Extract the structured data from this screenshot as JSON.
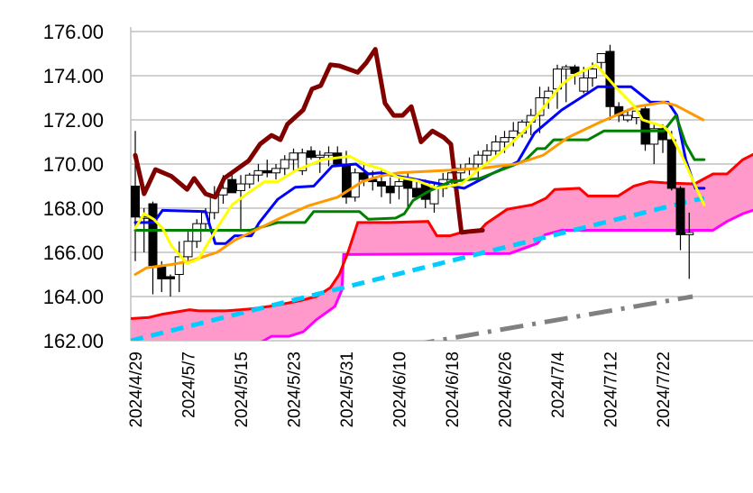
{
  "chart_data": {
    "type": "candlestick-ichimoku",
    "title": "",
    "ylim": [
      162,
      176
    ],
    "y_ticks": [
      "162.00",
      "164.00",
      "166.00",
      "168.00",
      "170.00",
      "172.00",
      "174.00",
      "176.00"
    ],
    "x_tick_labels": [
      "2024/4/29",
      "2024/5/7",
      "2024/5/15",
      "2024/5/23",
      "2024/5/31",
      "2024/6/10",
      "2024/6/18",
      "2024/6/26",
      "2024/7/4",
      "2024/7/12",
      "2024/7/22"
    ],
    "x_tick_every": 6,
    "grid": "horizontal",
    "candles_ohlc": [
      [
        169.0,
        171.5,
        165.6,
        167.6
      ],
      [
        167.6,
        168.0,
        166.0,
        167.6
      ],
      [
        168.2,
        168.3,
        164.1,
        165.4
      ],
      [
        165.4,
        165.6,
        164.2,
        164.8
      ],
      [
        164.9,
        165.0,
        164.0,
        164.8
      ],
      [
        165.0,
        166.5,
        164.2,
        165.8
      ],
      [
        165.8,
        167.0,
        165.6,
        166.5
      ],
      [
        166.5,
        167.5,
        166.2,
        167.3
      ],
      [
        167.3,
        168.0,
        167.0,
        167.8
      ],
      [
        167.8,
        169.0,
        167.5,
        168.6
      ],
      [
        168.6,
        169.5,
        168.2,
        168.9
      ],
      [
        169.3,
        169.5,
        168.7,
        168.7
      ],
      [
        168.8,
        169.5,
        167.0,
        169.1
      ],
      [
        169.1,
        169.6,
        168.9,
        169.5
      ],
      [
        169.5,
        170.0,
        169.2,
        169.7
      ],
      [
        169.7,
        170.2,
        169.4,
        169.6
      ],
      [
        169.6,
        170.0,
        169.3,
        169.8
      ],
      [
        169.8,
        170.4,
        169.5,
        170.2
      ],
      [
        170.2,
        170.7,
        169.6,
        170.5
      ],
      [
        169.7,
        170.7,
        169.5,
        170.5
      ],
      [
        170.6,
        170.8,
        170.2,
        170.3
      ],
      [
        170.3,
        170.6,
        169.6,
        170.4
      ],
      [
        170.4,
        170.8,
        169.9,
        170.5
      ],
      [
        170.5,
        170.8,
        170.0,
        170.0
      ],
      [
        170.0,
        170.6,
        168.2,
        168.5
      ],
      [
        168.5,
        169.8,
        168.3,
        169.6
      ],
      [
        169.6,
        170.0,
        169.0,
        169.3
      ],
      [
        169.3,
        169.7,
        168.8,
        169.2
      ],
      [
        169.2,
        169.8,
        168.5,
        169.0
      ],
      [
        169.0,
        169.4,
        168.2,
        168.7
      ],
      [
        169.0,
        169.4,
        168.4,
        169.2
      ],
      [
        169.3,
        169.6,
        168.0,
        168.9
      ],
      [
        168.9,
        169.3,
        168.4,
        168.5
      ],
      [
        169.1,
        169.3,
        168.0,
        168.4
      ],
      [
        168.2,
        169.2,
        167.8,
        168.9
      ],
      [
        168.9,
        169.6,
        168.5,
        169.3
      ],
      [
        169.3,
        169.8,
        169.0,
        169.6
      ],
      [
        169.6,
        170.0,
        169.3,
        169.8
      ],
      [
        169.8,
        170.3,
        169.5,
        170.0
      ],
      [
        170.0,
        170.6,
        169.4,
        170.4
      ],
      [
        170.4,
        170.9,
        170.0,
        170.6
      ],
      [
        170.6,
        171.3,
        170.3,
        171.0
      ],
      [
        171.0,
        171.5,
        170.5,
        171.2
      ],
      [
        171.2,
        171.9,
        170.8,
        171.5
      ],
      [
        171.4,
        172.0,
        171.2,
        171.9
      ],
      [
        171.9,
        172.5,
        171.3,
        172.2
      ],
      [
        172.2,
        173.5,
        171.4,
        173.0
      ],
      [
        173.0,
        173.5,
        172.5,
        173.3
      ],
      [
        173.4,
        174.5,
        172.5,
        174.3
      ],
      [
        174.3,
        174.5,
        172.8,
        174.4
      ],
      [
        174.4,
        174.5,
        173.6,
        174.1
      ],
      [
        173.3,
        174.4,
        173.2,
        173.9
      ],
      [
        173.9,
        174.6,
        173.5,
        174.3
      ],
      [
        174.6,
        175.0,
        174.2,
        175.0
      ],
      [
        175.1,
        175.4,
        172.0,
        172.6
      ],
      [
        172.6,
        172.8,
        171.9,
        172.2
      ],
      [
        172.0,
        172.5,
        171.9,
        172.2
      ],
      [
        172.1,
        172.5,
        171.8,
        172.4
      ],
      [
        172.5,
        172.6,
        170.6,
        170.9
      ],
      [
        170.9,
        171.8,
        170.0,
        171.6
      ],
      [
        171.6,
        171.8,
        170.5,
        171.1
      ],
      [
        171.1,
        171.5,
        168.8,
        168.9
      ],
      [
        168.9,
        169.0,
        166.1,
        166.8
      ],
      [
        166.8,
        167.8,
        164.8,
        166.9
      ]
    ],
    "series": [
      {
        "name": "chikou",
        "color": "#800000",
        "width": 5,
        "points": [
          [
            0,
            170.4
          ],
          [
            1.0,
            168.65
          ],
          [
            2.3,
            169.75
          ],
          [
            4.1,
            169.45
          ],
          [
            5.9,
            168.85
          ],
          [
            6.7,
            169.35
          ],
          [
            8.0,
            168.65
          ],
          [
            9.1,
            168.5
          ],
          [
            10.1,
            169.35
          ],
          [
            11.5,
            169.75
          ],
          [
            12.9,
            170.15
          ],
          [
            14.2,
            170.9
          ],
          [
            15.5,
            171.3
          ],
          [
            16.5,
            171.1
          ],
          [
            17.3,
            171.8
          ],
          [
            19.1,
            172.45
          ],
          [
            20.1,
            173.4
          ],
          [
            21.1,
            173.55
          ],
          [
            22.2,
            174.5
          ],
          [
            23.2,
            174.45
          ],
          [
            25.3,
            174.15
          ],
          [
            26.3,
            174.6
          ],
          [
            27.3,
            175.2
          ],
          [
            28.4,
            172.75
          ],
          [
            29.4,
            172.2
          ],
          [
            30.4,
            172.2
          ],
          [
            31.4,
            172.6
          ],
          [
            32.5,
            171.0
          ],
          [
            33.8,
            171.5
          ],
          [
            35.1,
            171.2
          ],
          [
            35.9,
            170.9
          ],
          [
            37.1,
            166.9
          ],
          [
            38.1,
            166.95
          ],
          [
            39.5,
            167.0
          ]
        ]
      },
      {
        "name": "blue",
        "color": "#0000ff",
        "width": 3,
        "points": [
          [
            0,
            167.35
          ],
          [
            2.1,
            167.35
          ],
          [
            3.1,
            167.9
          ],
          [
            8.0,
            167.85
          ],
          [
            9.1,
            166.4
          ],
          [
            10.3,
            166.4
          ],
          [
            11.3,
            166.75
          ],
          [
            13.2,
            166.75
          ],
          [
            14.1,
            167.35
          ],
          [
            16.2,
            168.4
          ],
          [
            18.2,
            168.95
          ],
          [
            20.3,
            169.0
          ],
          [
            22.4,
            169.9
          ],
          [
            25.1,
            170.0
          ],
          [
            26.5,
            169.55
          ],
          [
            27.8,
            169.6
          ],
          [
            34.7,
            169.1
          ],
          [
            37.4,
            168.9
          ],
          [
            40.5,
            169.55
          ],
          [
            43.5,
            170.1
          ],
          [
            45.4,
            171.4
          ],
          [
            48.5,
            172.45
          ],
          [
            52.6,
            173.5
          ],
          [
            56.4,
            173.5
          ],
          [
            58.6,
            172.8
          ],
          [
            60.6,
            172.8
          ],
          [
            61.6,
            172.2
          ],
          [
            62.6,
            170.2
          ],
          [
            63.7,
            168.9
          ],
          [
            64.7,
            168.9
          ]
        ]
      },
      {
        "name": "green",
        "color": "#008000",
        "width": 3,
        "points": [
          [
            0,
            167.0
          ],
          [
            13.1,
            167.0
          ],
          [
            16.2,
            167.35
          ],
          [
            19.3,
            167.35
          ],
          [
            20.3,
            167.85
          ],
          [
            25.5,
            167.85
          ],
          [
            26.5,
            167.5
          ],
          [
            29.6,
            167.55
          ],
          [
            30.6,
            167.75
          ],
          [
            31.6,
            168.35
          ],
          [
            33.3,
            168.75
          ],
          [
            35.8,
            169.2
          ],
          [
            39.2,
            169.35
          ],
          [
            44.3,
            170.15
          ],
          [
            45.7,
            170.7
          ],
          [
            46.6,
            170.7
          ],
          [
            47.6,
            171.1
          ],
          [
            51.5,
            171.1
          ],
          [
            53.3,
            171.5
          ],
          [
            60.1,
            171.5
          ],
          [
            61.5,
            172.2
          ],
          [
            62.6,
            170.9
          ],
          [
            63.6,
            170.2
          ],
          [
            64.7,
            170.2
          ]
        ]
      },
      {
        "name": "orange",
        "color": "#ff9900",
        "width": 3,
        "points": [
          [
            0,
            165.0
          ],
          [
            1.3,
            165.3
          ],
          [
            4.1,
            165.45
          ],
          [
            6.2,
            165.6
          ],
          [
            9.3,
            166.0
          ],
          [
            11.3,
            166.55
          ],
          [
            13.4,
            166.95
          ],
          [
            16.2,
            167.5
          ],
          [
            19.6,
            168.1
          ],
          [
            23.0,
            168.5
          ],
          [
            25.8,
            169.2
          ],
          [
            27.8,
            169.45
          ],
          [
            29.9,
            169.6
          ],
          [
            34.7,
            169.7
          ],
          [
            39.2,
            169.8
          ],
          [
            43.3,
            170.0
          ],
          [
            46.4,
            170.4
          ],
          [
            49.2,
            171.2
          ],
          [
            52.9,
            171.9
          ],
          [
            57.0,
            172.6
          ],
          [
            60.1,
            172.8
          ],
          [
            61.5,
            172.65
          ],
          [
            64.6,
            172.0
          ]
        ]
      },
      {
        "name": "yellow",
        "color": "#ffff00",
        "width": 3,
        "points": [
          [
            0,
            167.1
          ],
          [
            1.0,
            167.75
          ],
          [
            2.1,
            167.5
          ],
          [
            3.1,
            167.1
          ],
          [
            4.1,
            166.3
          ],
          [
            5.9,
            165.5
          ],
          [
            7.2,
            165.7
          ],
          [
            9.3,
            167.1
          ],
          [
            11.0,
            168.15
          ],
          [
            12.7,
            168.65
          ],
          [
            14.7,
            169.2
          ],
          [
            16.2,
            169.2
          ],
          [
            18.2,
            169.7
          ],
          [
            21.3,
            170.2
          ],
          [
            24.4,
            170.35
          ],
          [
            26.1,
            170.0
          ],
          [
            27.8,
            169.8
          ],
          [
            29.9,
            169.4
          ],
          [
            32.0,
            169.25
          ],
          [
            34.3,
            168.9
          ],
          [
            37.1,
            169.1
          ],
          [
            39.2,
            169.8
          ],
          [
            41.5,
            170.5
          ],
          [
            44.0,
            171.4
          ],
          [
            46.1,
            172.4
          ],
          [
            48.5,
            173.6
          ],
          [
            49.8,
            174.0
          ],
          [
            52.4,
            174.5
          ],
          [
            54.6,
            173.5
          ],
          [
            56.7,
            172.65
          ],
          [
            57.7,
            172.0
          ],
          [
            60.1,
            171.7
          ],
          [
            60.8,
            171.4
          ],
          [
            62.2,
            170.35
          ],
          [
            63.6,
            169.1
          ],
          [
            64.7,
            168.15
          ]
        ]
      }
    ],
    "cloud": {
      "fill": "#ff99cc",
      "senkou_a": {
        "color": "#ff0000",
        "points": [
          [
            -0.5,
            163.0
          ],
          [
            1.5,
            163.05
          ],
          [
            3.1,
            163.2
          ],
          [
            6.2,
            163.4
          ],
          [
            7.2,
            163.35
          ],
          [
            10.3,
            163.35
          ],
          [
            11.9,
            163.4
          ],
          [
            13.4,
            163.45
          ],
          [
            16.0,
            163.6
          ],
          [
            18.6,
            163.8
          ],
          [
            20.6,
            164.0
          ],
          [
            22.2,
            164.4
          ],
          [
            23.2,
            165.0
          ],
          [
            24.2,
            166.0
          ],
          [
            25.3,
            167.35
          ],
          [
            28.9,
            167.35
          ],
          [
            33.3,
            167.4
          ],
          [
            34.3,
            166.75
          ],
          [
            35.8,
            166.75
          ],
          [
            37.1,
            166.9
          ],
          [
            39.2,
            167.0
          ],
          [
            39.9,
            167.3
          ],
          [
            42.3,
            167.95
          ],
          [
            45.1,
            168.15
          ],
          [
            46.7,
            168.45
          ],
          [
            47.7,
            168.85
          ],
          [
            50.5,
            168.9
          ],
          [
            51.5,
            168.55
          ],
          [
            54.9,
            168.55
          ],
          [
            56.7,
            169.0
          ],
          [
            58.5,
            169.2
          ],
          [
            60.1,
            169.15
          ],
          [
            63.6,
            169.1
          ],
          [
            65.7,
            169.55
          ],
          [
            67.3,
            169.55
          ],
          [
            69.1,
            170.2
          ],
          [
            70.6,
            170.5
          ]
        ]
      },
      "senkou_b": {
        "color": "#ff00ff",
        "points": [
          [
            -0.5,
            161.0
          ],
          [
            14.4,
            161.95
          ],
          [
            15.5,
            162.2
          ],
          [
            17.5,
            162.2
          ],
          [
            19.1,
            162.4
          ],
          [
            20.6,
            162.95
          ],
          [
            22.7,
            163.55
          ],
          [
            23.5,
            164.3
          ],
          [
            23.7,
            165.9
          ],
          [
            42.6,
            165.95
          ],
          [
            45.7,
            166.4
          ],
          [
            46.6,
            166.8
          ],
          [
            48.5,
            167.0
          ],
          [
            65.7,
            167.0
          ],
          [
            67.3,
            167.4
          ],
          [
            69.1,
            167.75
          ],
          [
            70.6,
            167.95
          ]
        ]
      }
    },
    "trendlines": [
      {
        "name": "cyan-dashed",
        "color": "#00ccff",
        "points": [
          [
            -0.5,
            162.0
          ],
          [
            63.4,
            168.35
          ],
          [
            64.7,
            168.45
          ]
        ]
      },
      {
        "name": "gray-dashdot",
        "color": "#808080",
        "points": [
          [
            31.4,
            161.8
          ],
          [
            63.4,
            164.0
          ]
        ]
      }
    ]
  }
}
